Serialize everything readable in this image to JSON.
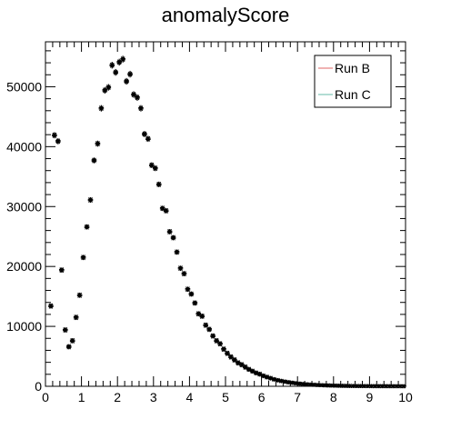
{
  "chart_data": {
    "type": "scatter",
    "title": "anomalyScore",
    "xlabel": "",
    "ylabel": "",
    "xlim": [
      0,
      10
    ],
    "ylim": [
      0,
      57500
    ],
    "x_ticks": [
      "0",
      "1",
      "2",
      "3",
      "4",
      "5",
      "6",
      "7",
      "8",
      "9",
      "10"
    ],
    "y_ticks": [
      "0",
      "10000",
      "20000",
      "30000",
      "40000",
      "50000"
    ],
    "grid": false,
    "legend_position": "top-right",
    "legend": [
      {
        "label": "Run B",
        "color": "#e06666"
      },
      {
        "label": "Run C",
        "color": "#66bbaa"
      }
    ],
    "series": [
      {
        "name": "Run B",
        "color": "#e06666",
        "x": [
          0.05,
          0.15,
          0.25,
          0.35,
          0.45,
          0.55,
          0.65,
          0.75,
          0.85,
          0.95,
          1.05,
          1.15,
          1.25,
          1.35,
          1.45,
          1.55,
          1.65,
          1.75,
          1.85,
          1.95,
          2.05,
          2.15,
          2.25,
          2.35,
          2.45,
          2.55,
          2.65,
          2.75,
          2.85,
          2.95,
          3.05,
          3.15,
          3.25,
          3.35,
          3.45,
          3.55,
          3.65,
          3.75,
          3.85,
          3.95,
          4.05,
          4.15,
          4.25,
          4.35,
          4.45,
          4.55,
          4.65,
          4.75,
          4.85,
          4.95,
          5.05,
          5.15,
          5.25,
          5.35,
          5.45,
          5.55,
          5.65,
          5.75,
          5.85,
          5.95,
          6.05,
          6.15,
          6.25,
          6.35,
          6.45,
          6.55,
          6.65,
          6.75,
          6.85,
          6.95,
          7.05,
          7.15,
          7.25,
          7.35,
          7.45,
          7.55,
          7.65,
          7.75,
          7.85,
          7.95,
          8.05,
          8.15,
          8.25,
          8.35,
          8.45,
          8.55,
          8.65,
          8.75,
          8.85,
          8.95,
          9.05,
          9.15,
          9.25,
          9.35,
          9.45,
          9.55,
          9.65,
          9.75,
          9.85,
          9.95
        ],
        "values": [
          0,
          13500,
          42000,
          41000,
          19500,
          9500,
          6700,
          7700,
          11600,
          15300,
          21600,
          26700,
          31200,
          37800,
          40600,
          46500,
          49500,
          50000,
          53700,
          52500,
          54200,
          54700,
          51000,
          52200,
          48800,
          48300,
          46500,
          42200,
          41400,
          37000,
          36500,
          33800,
          29800,
          29400,
          25900,
          24900,
          22500,
          19800,
          18900,
          16300,
          15500,
          14000,
          12200,
          11800,
          10300,
          9600,
          8500,
          7700,
          7200,
          6300,
          5600,
          5000,
          4500,
          4000,
          3700,
          3300,
          2900,
          2600,
          2300,
          2100,
          1800,
          1600,
          1400,
          1200,
          1050,
          920,
          800,
          700,
          610,
          530,
          460,
          400,
          350,
          300,
          260,
          225,
          195,
          170,
          148,
          128,
          110,
          95,
          82,
          71,
          61,
          53,
          46,
          40,
          34,
          29,
          25,
          22,
          19,
          16,
          14,
          12,
          10,
          9,
          8,
          7
        ]
      },
      {
        "name": "Run C",
        "color": "#66bbaa",
        "x": [
          0.05,
          0.15,
          0.25,
          0.35,
          0.45,
          0.55,
          0.65,
          0.75,
          0.85,
          0.95,
          1.05,
          1.15,
          1.25,
          1.35,
          1.45,
          1.55,
          1.65,
          1.75,
          1.85,
          1.95,
          2.05,
          2.15,
          2.25,
          2.35,
          2.45,
          2.55,
          2.65,
          2.75,
          2.85,
          2.95,
          3.05,
          3.15,
          3.25,
          3.35,
          3.45,
          3.55,
          3.65,
          3.75,
          3.85,
          3.95,
          4.05,
          4.15,
          4.25,
          4.35,
          4.45,
          4.55,
          4.65,
          4.75,
          4.85,
          4.95,
          5.05,
          5.15,
          5.25,
          5.35,
          5.45,
          5.55,
          5.65,
          5.75,
          5.85,
          5.95,
          6.05,
          6.15,
          6.25,
          6.35,
          6.45,
          6.55,
          6.65,
          6.75,
          6.85,
          6.95,
          7.05,
          7.15,
          7.25,
          7.35,
          7.45,
          7.55,
          7.65,
          7.75,
          7.85,
          7.95,
          8.05,
          8.15,
          8.25,
          8.35,
          8.45,
          8.55,
          8.65,
          8.75,
          8.85,
          8.95,
          9.05,
          9.15,
          9.25,
          9.35,
          9.45,
          9.55,
          9.65,
          9.75,
          9.85,
          9.95
        ],
        "values": [
          0,
          13300,
          41800,
          40800,
          19300,
          9300,
          6500,
          7500,
          11400,
          15100,
          21400,
          26500,
          31000,
          37600,
          40400,
          46300,
          49300,
          49800,
          53500,
          52300,
          54000,
          54500,
          50800,
          52000,
          48600,
          48100,
          46300,
          42000,
          41200,
          36800,
          36300,
          33600,
          29600,
          29200,
          25700,
          24700,
          22300,
          19600,
          18700,
          16100,
          15300,
          13800,
          12000,
          11600,
          10100,
          9400,
          8300,
          7500,
          7000,
          6100,
          5400,
          4800,
          4300,
          3800,
          3500,
          3100,
          2750,
          2450,
          2150,
          1950,
          1680,
          1480,
          1300,
          1120,
          970,
          850,
          740,
          640,
          560,
          490,
          420,
          365,
          320,
          275,
          240,
          205,
          178,
          155,
          135,
          117,
          100,
          87,
          75,
          65,
          56,
          48,
          42,
          36,
          31,
          27,
          23,
          20,
          17,
          15,
          13,
          11,
          9,
          8,
          7,
          6
        ]
      }
    ]
  }
}
